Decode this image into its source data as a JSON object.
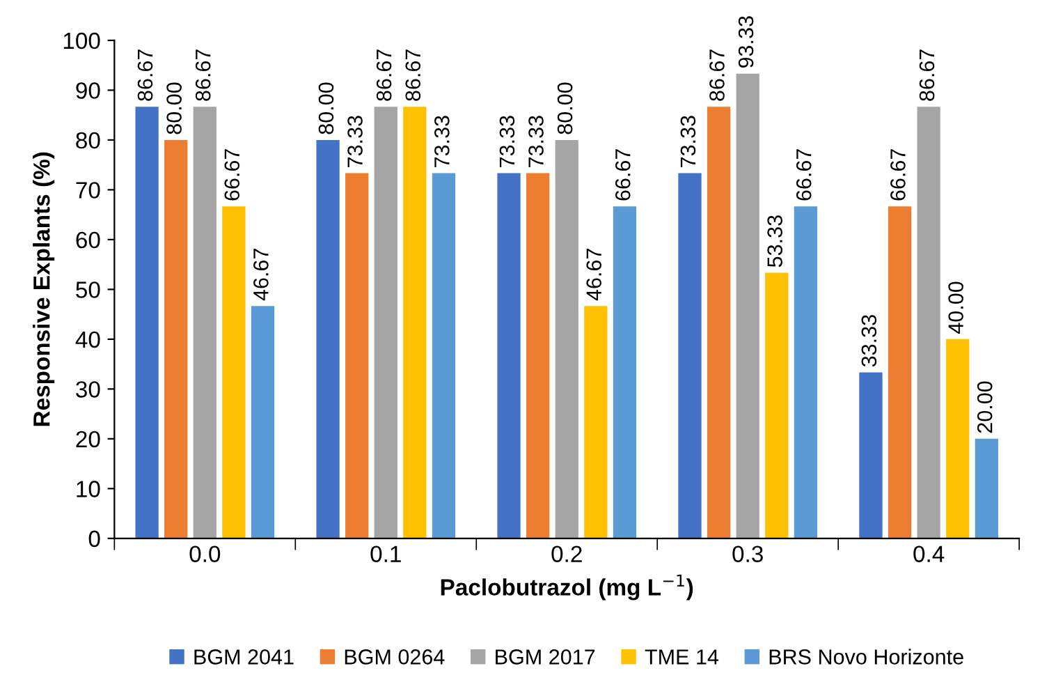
{
  "chart_data": {
    "type": "bar",
    "xlabel": "Paclobutrazol (mg L$^{−1}$)",
    "ylabel": "Responsive Explants (%)",
    "categories": [
      "0.0",
      "0.1",
      "0.2",
      "0.3",
      "0.4"
    ],
    "ylim": [
      0,
      100
    ],
    "yticks": [
      0,
      10,
      20,
      30,
      40,
      50,
      60,
      70,
      80,
      90,
      100
    ],
    "grid": false,
    "legend": "bottom",
    "series": [
      {
        "name": "BGM 2041",
        "color": "#4472c4",
        "values": [
          86.67,
          80.0,
          73.33,
          73.33,
          33.33
        ],
        "value_labels": [
          "86.67",
          "80.00",
          "73.33",
          "73.33",
          "33.33"
        ]
      },
      {
        "name": "BGM 0264",
        "color": "#ed7d31",
        "values": [
          80.0,
          73.33,
          73.33,
          86.67,
          66.67
        ],
        "value_labels": [
          "80.00",
          "73.33",
          "73.33",
          "86.67",
          "66.67"
        ]
      },
      {
        "name": "BGM 2017",
        "color": "#a5a5a5",
        "values": [
          86.67,
          86.67,
          80.0,
          93.33,
          86.67
        ],
        "value_labels": [
          "86.67",
          "86.67",
          "80.00",
          "93.33",
          "86.67"
        ]
      },
      {
        "name": "TME 14",
        "color": "#ffc000",
        "values": [
          66.67,
          86.67,
          46.67,
          53.33,
          40.0
        ],
        "value_labels": [
          "66.67",
          "86.67",
          "46.67",
          "53.33",
          "40.00"
        ]
      },
      {
        "name": "BRS Novo Horizonte",
        "color": "#5b9bd5",
        "values": [
          46.67,
          73.33,
          66.67,
          66.67,
          20.0
        ],
        "value_labels": [
          "46.67",
          "73.33",
          "66.67",
          "66.67",
          "20.00"
        ]
      }
    ]
  }
}
